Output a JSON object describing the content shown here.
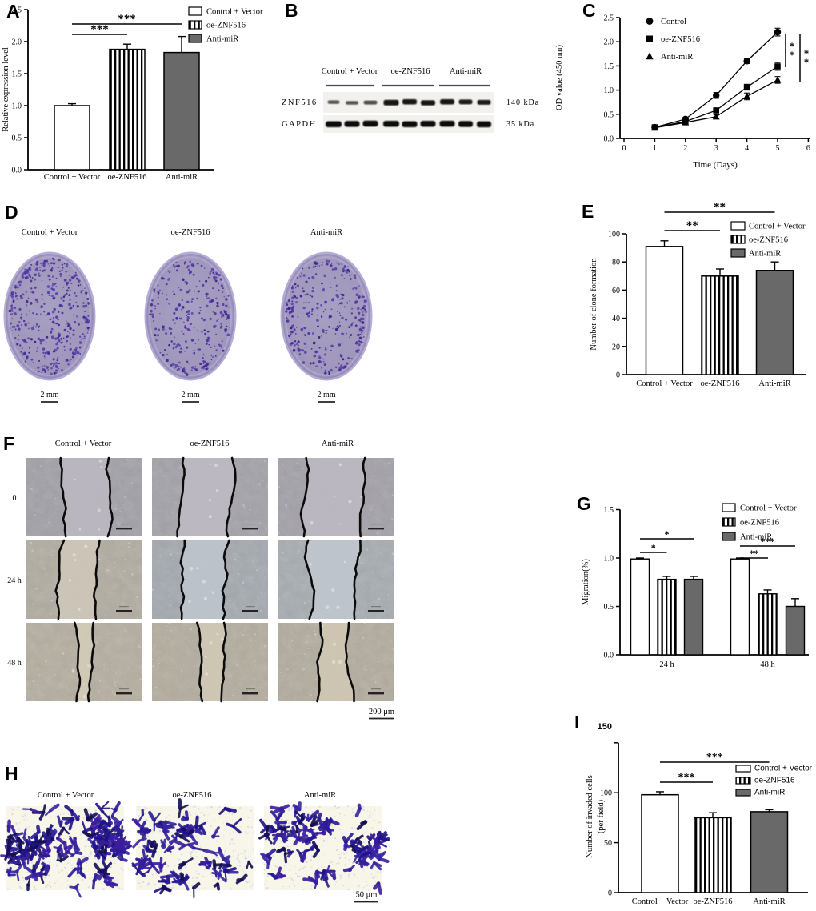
{
  "figure_bg": "#ffffff",
  "colors": {
    "bar_gray": "#696969",
    "axis": "#000000",
    "dish_body": "#a39ac2",
    "dish_rim": "#b5abd8",
    "colony": "#45279c",
    "cell_stain": "#2a1b96",
    "transwell_bg": "#f7f6e9"
  },
  "panels": {
    "A": {
      "label": "A"
    },
    "B": {
      "label": "B",
      "lane_groups": [
        "Control + Vector",
        "oe-ZNF516",
        "Anti-miR"
      ],
      "rows": [
        {
          "name": "ZNF516",
          "kda": "140 kDa"
        },
        {
          "name": "GAPDH",
          "kda": "35 kDa"
        }
      ]
    },
    "C": {
      "label": "C"
    },
    "D": {
      "label": "D",
      "columns": [
        "Control + Vector",
        "oe-ZNF516",
        "Anti-miR"
      ],
      "scale_bar": "2 mm"
    },
    "E": {
      "label": "E"
    },
    "F": {
      "label": "F",
      "columns": [
        "Control + Vector",
        "oe-ZNF516",
        "Anti-miR"
      ],
      "rows": [
        "0",
        "24 h",
        "48 h"
      ],
      "scale_bar": "200 μm"
    },
    "G": {
      "label": "G"
    },
    "H": {
      "label": "H",
      "columns": [
        "Control + Vector",
        "oe-ZNF516",
        "Anti-miR"
      ],
      "scale_bar": "50 μm"
    },
    "I": {
      "label": "I"
    }
  },
  "chart_data": [
    {
      "panel": "A",
      "type": "bar",
      "ylabel": "Relative expression level",
      "ylim": [
        0,
        2.5
      ],
      "yticks": [
        0,
        0.5,
        1.0,
        1.5,
        2.0,
        2.5
      ],
      "categories": [
        "Control + Vector",
        "oe-ZNF516",
        "Anti-miR"
      ],
      "values": [
        1.0,
        1.88,
        1.83
      ],
      "errors": [
        0.03,
        0.08,
        0.25
      ],
      "bar_styles": [
        "white",
        "vstripe",
        "gray"
      ],
      "legend": [
        "Control + Vector",
        "oe-ZNF516",
        "Anti-miR"
      ],
      "significance": [
        {
          "between": [
            "Control + Vector",
            "oe-ZNF516"
          ],
          "label": "***"
        },
        {
          "between": [
            "Control + Vector",
            "Anti-miR"
          ],
          "label": "***"
        }
      ]
    },
    {
      "panel": "C",
      "type": "line",
      "xlabel": "Time (Days)",
      "ylabel": "OD value  (450 nm)",
      "xlim": [
        0,
        6
      ],
      "ylim": [
        0,
        2.5
      ],
      "xticks": [
        0,
        1,
        2,
        3,
        4,
        5,
        6
      ],
      "yticks": [
        0,
        0.5,
        1.0,
        1.5,
        2.0,
        2.5
      ],
      "x": [
        1,
        2,
        3,
        4,
        5
      ],
      "series": [
        {
          "name": "Control",
          "marker": "circle",
          "values": [
            0.23,
            0.4,
            0.89,
            1.6,
            2.2
          ],
          "errors": [
            0.02,
            0.03,
            0.06,
            0.05,
            0.08
          ]
        },
        {
          "name": "oe-ZNF516",
          "marker": "square",
          "values": [
            0.23,
            0.35,
            0.58,
            1.06,
            1.49
          ],
          "errors": [
            0.02,
            0.03,
            0.04,
            0.06,
            0.08
          ]
        },
        {
          "name": "Anti-miR",
          "marker": "triangle",
          "values": [
            0.22,
            0.33,
            0.45,
            0.87,
            1.21
          ],
          "errors": [
            0.02,
            0.03,
            0.04,
            0.07,
            0.07
          ]
        }
      ],
      "significance": [
        {
          "between": [
            "Control",
            "oe-ZNF516"
          ],
          "label": "**"
        },
        {
          "between": [
            "Control",
            "Anti-miR"
          ],
          "label": "**"
        }
      ]
    },
    {
      "panel": "E",
      "type": "bar",
      "ylabel": "Number of clone formation",
      "ylim": [
        0,
        100
      ],
      "yticks": [
        0,
        20,
        40,
        60,
        80,
        100
      ],
      "categories": [
        "Control + Vector",
        "oe-ZNF516",
        "Anti-miR"
      ],
      "values": [
        91,
        70,
        74
      ],
      "errors": [
        4,
        5,
        6
      ],
      "bar_styles": [
        "white",
        "vstripe",
        "gray"
      ],
      "legend": [
        "Control + Vector",
        "oe-ZNF516",
        "Anti-miR"
      ],
      "significance": [
        {
          "between": [
            "Control + Vector",
            "oe-ZNF516"
          ],
          "label": "**"
        },
        {
          "between": [
            "Control + Vector",
            "Anti-miR"
          ],
          "label": "**"
        }
      ]
    },
    {
      "panel": "G",
      "type": "grouped_bar",
      "ylabel": "Migration(%)",
      "ylim": [
        0,
        1.5
      ],
      "yticks": [
        0,
        0.5,
        1.0,
        1.5
      ],
      "categories": [
        "24 h",
        "48 h"
      ],
      "series": [
        {
          "name": "Control + Vector",
          "style": "white",
          "values": [
            0.99,
            0.99
          ],
          "errors": [
            0.01,
            0.01
          ]
        },
        {
          "name": "oe-ZNF516",
          "style": "vstripe",
          "values": [
            0.78,
            0.63
          ],
          "errors": [
            0.03,
            0.04
          ]
        },
        {
          "name": "Anti-miR",
          "style": "gray",
          "values": [
            0.78,
            0.5
          ],
          "errors": [
            0.03,
            0.08
          ]
        }
      ],
      "legend": [
        "Control + Vector",
        "oe-ZNF516",
        "Anti-miR"
      ],
      "significance": [
        {
          "group": "24 h",
          "between": [
            "Control + Vector",
            "oe-ZNF516"
          ],
          "label": "*"
        },
        {
          "group": "24 h",
          "between": [
            "Control + Vector",
            "Anti-miR"
          ],
          "label": "*"
        },
        {
          "group": "48 h",
          "between": [
            "Control + Vector",
            "oe-ZNF516"
          ],
          "label": "**"
        },
        {
          "group": "48 h",
          "between": [
            "Control + Vector",
            "Anti-miR"
          ],
          "label": "***"
        }
      ]
    },
    {
      "panel": "I",
      "type": "bar",
      "ylabel": "Number of invaded cells (per field)",
      "ylabel_lines": [
        "Number of invaded cells",
        "(per  field)"
      ],
      "ylim": [
        0,
        150
      ],
      "yticks": [
        0,
        50,
        100,
        150
      ],
      "categories": [
        "Control + Vector",
        "oe-ZNF516",
        "Anti-miR"
      ],
      "values": [
        98,
        75,
        81
      ],
      "errors": [
        3,
        5,
        2
      ],
      "bar_styles": [
        "white",
        "vstripe",
        "gray"
      ],
      "legend": [
        "Control + Vector",
        "oe-ZNF516",
        "Anti-miR"
      ],
      "significance": [
        {
          "between": [
            "Control + Vector",
            "oe-ZNF516"
          ],
          "label": "***"
        },
        {
          "between": [
            "Control + Vector",
            "Anti-miR"
          ],
          "label": "***"
        }
      ]
    }
  ]
}
